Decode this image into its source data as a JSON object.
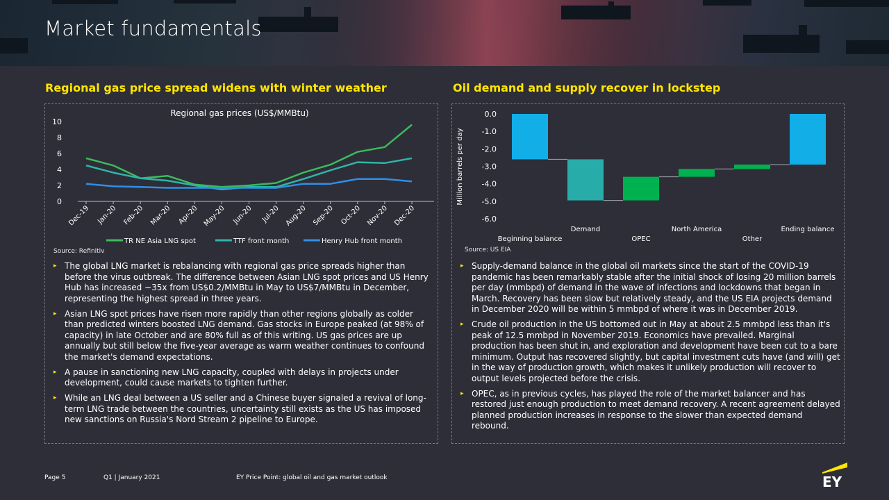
{
  "header": {
    "title": "Market fundamentals"
  },
  "left": {
    "section_title": "Regional gas price spread widens with winter weather",
    "source": "Source: Refinitiv",
    "bullets": [
      "The global LNG market is rebalancing with regional gas price spreads higher than before the virus outbreak. The difference between Asian LNG spot prices and US Henry Hub has increased ~35x from US$0.2/MMBtu in May to US$7/MMBtu in December, representing the highest spread in three years.",
      "Asian LNG spot prices have risen more rapidly than other regions globally as colder than predicted winters boosted LNG demand. Gas stocks in Europe peaked (at 98% of capacity) in late October and are 80% full as of this writing. US gas prices are up annually but still below the five-year average as warm weather continues to confound the market's demand expectations.",
      "A pause in sanctioning new LNG capacity, coupled with delays in projects under development, could cause markets to tighten further.",
      "While an LNG deal between a US seller and a Chinese buyer signaled a revival of long-term LNG trade between the countries, uncertainty still exists as the US has imposed new sanctions on Russia's Nord Stream 2 pipeline to Europe."
    ]
  },
  "right": {
    "section_title": "Oil demand and supply recover in lockstep",
    "source": "Source: US EIA",
    "bullets": [
      "Supply-demand balance in the global oil markets since the start of the COVID-19 pandemic has been remarkably stable after the initial shock of losing 20 million barrels per day (mmbpd) of demand in the wave of infections and lockdowns that began in March. Recovery has been slow but relatively steady, and the US EIA projects demand in December 2020 will be within 5 mmbpd of where it was in December 2019.",
      "Crude oil production in the US bottomed out in May at about 2.5 mmbpd less than it's peak of 12.5 mmbpd in November 2019. Economics have prevailed. Marginal production has been shut in, and exploration and development have been cut to a bare minimum. Output has recovered slightly, but capital investment cuts have (and will) get in the way of production growth, which makes it unlikely production will recover to output levels projected before the crisis.",
      "OPEC, as in previous cycles, has played the role of the market balancer and has restored just enough production to meet demand recovery. A recent agreement delayed planned production increases in response to the slower than expected demand rebound."
    ]
  },
  "footer": {
    "page": "Page 5",
    "date": "Q1 | January 2021",
    "publication": "EY Price Point: global oil and gas market outlook",
    "logo_text": "EY"
  },
  "colors": {
    "yellow": "#ffe600",
    "tr_ne_asia": "#3dba5c",
    "ttf": "#2db5a8",
    "henry_hub": "#2f8fe8",
    "blue_bar": "#11aee8",
    "teal_bar": "#27acaa",
    "green_bar": "#00b14f"
  },
  "chart_data": [
    {
      "type": "line",
      "title": "Regional gas prices (US$/MMBtu)",
      "categories": [
        "Dec-19",
        "Jan-20",
        "Feb-20",
        "Mar-20",
        "Apr-20",
        "May-20",
        "Jun-20",
        "Jul-20",
        "Aug-20",
        "Sep-20",
        "Oct-20",
        "Nov-20",
        "Dec-20"
      ],
      "ylim": [
        0,
        10
      ],
      "yticks": [
        0,
        2,
        4,
        6,
        8,
        10
      ],
      "legend_position": "bottom",
      "grid": false,
      "series": [
        {
          "name": "TR NE Asia LNG spot",
          "color": "#3dba5c",
          "values": [
            5.4,
            4.5,
            2.9,
            3.2,
            2.1,
            1.8,
            2.0,
            2.3,
            3.6,
            4.6,
            6.2,
            6.8,
            9.6
          ]
        },
        {
          "name": "TTF front month",
          "color": "#2db5a8",
          "values": [
            4.5,
            3.6,
            2.9,
            2.6,
            2.0,
            1.5,
            1.8,
            1.8,
            2.8,
            3.9,
            4.9,
            4.8,
            5.4
          ]
        },
        {
          "name": "Henry Hub front month",
          "color": "#2f8fe8",
          "values": [
            2.2,
            1.9,
            1.8,
            1.7,
            1.7,
            1.7,
            1.7,
            1.7,
            2.2,
            2.2,
            2.8,
            2.8,
            2.5
          ]
        }
      ]
    },
    {
      "type": "bar",
      "subtype": "waterfall",
      "ylabel": "Million barrels per day",
      "ylim": [
        -6.0,
        0.0
      ],
      "yticks": [
        "0.0",
        "-1.0",
        "-2.0",
        "-3.0",
        "-4.0",
        "-5.0",
        "-6.0"
      ],
      "categories": [
        "Beginning balance",
        "Demand",
        "OPEC",
        "North America",
        "Other",
        "Ending balance"
      ],
      "bars": [
        {
          "label": "Beginning balance",
          "from": 0.0,
          "to": -2.6,
          "color": "#11aee8"
        },
        {
          "label": "Demand",
          "from": -2.6,
          "to": -4.95,
          "color": "#27acaa"
        },
        {
          "label": "OPEC",
          "from": -4.95,
          "to": -3.6,
          "color": "#00b14f"
        },
        {
          "label": "North America",
          "from": -3.6,
          "to": -3.15,
          "color": "#00b14f"
        },
        {
          "label": "Other",
          "from": -3.15,
          "to": -2.9,
          "color": "#00b14f"
        },
        {
          "label": "Ending balance",
          "from": 0.0,
          "to": -2.9,
          "color": "#11aee8"
        }
      ]
    }
  ]
}
